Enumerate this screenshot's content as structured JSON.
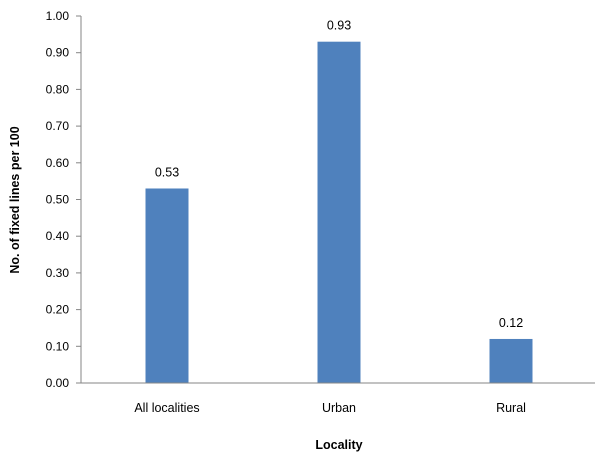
{
  "chart_data": {
    "type": "bar",
    "categories": [
      "All localities",
      "Urban",
      "Rural"
    ],
    "values": [
      0.53,
      0.93,
      0.12
    ],
    "data_labels": [
      "0.53",
      "0.93",
      "0.12"
    ],
    "xlabel": "Locality",
    "ylabel": "No. of fixed lines per 100",
    "ylim": [
      0,
      1.0
    ],
    "yticks": [
      "0.00",
      "0.10",
      "0.20",
      "0.30",
      "0.40",
      "0.50",
      "0.60",
      "0.70",
      "0.80",
      "0.90",
      "1.00"
    ],
    "bar_color": "#4f81bd",
    "grid": false,
    "legend": "none"
  }
}
